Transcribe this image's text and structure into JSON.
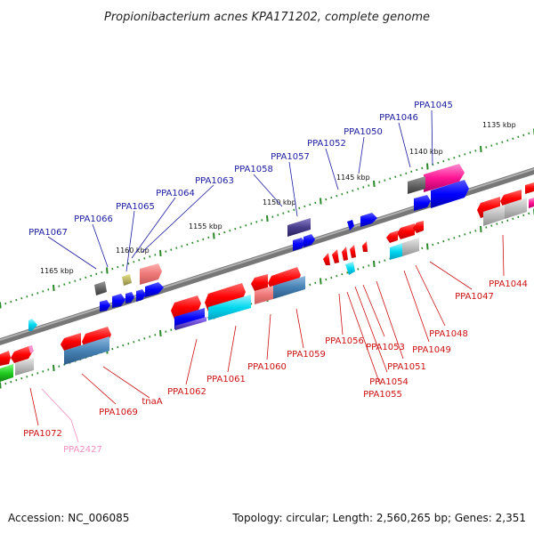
{
  "title": "Propionibacterium acnes KPA171202, complete genome",
  "footer": {
    "accession": "Accession: NC_006085",
    "summary": "Topology: circular; Length: 2,560,265 bp; Genes: 2,351"
  },
  "colors": {
    "forward_label": "#1a1aa0",
    "reverse_label": "#cc1111",
    "pseudo_label": "#f28fc2",
    "backbone": "#7a7a7a",
    "tick": "#2a8a2a"
  },
  "scale_labels": [
    "1135 kbp",
    "1140 kbp",
    "1145 kbp",
    "1150 kbp",
    "1155 kbp",
    "1160 kbp",
    "1165 kbp"
  ],
  "forward_labels": [
    "PPA1045",
    "PPA1046",
    "PPA1050",
    "PPA1052",
    "PPA1057",
    "PPA1058",
    "PPA1063",
    "PPA1064",
    "PPA1065",
    "PPA1066",
    "PPA1067"
  ],
  "reverse_labels": [
    "PPA1044",
    "PPA1047",
    "PPA1048",
    "PPA1049",
    "PPA1051",
    "PPA1053",
    "PPA1054",
    "PPA1055",
    "PPA1056",
    "PPA1059",
    "PPA1060",
    "PPA1061",
    "PPA1062",
    "tnaA",
    "PPA1069",
    "PPA1072",
    "PPA2427"
  ]
}
